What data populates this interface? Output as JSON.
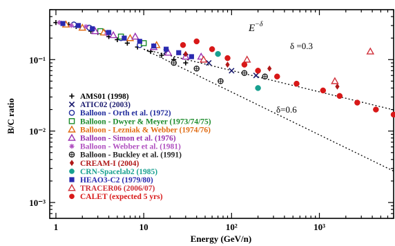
{
  "chart_data": {
    "type": "scatter",
    "xlabel": "Energy (GeV/n)",
    "ylabel": "B/C ratio",
    "xscale": "log",
    "yscale": "log",
    "xlim": [
      0.85,
      7000
    ],
    "ylim": [
      0.0006,
      0.5
    ],
    "x_ticks": [
      {
        "value": 1,
        "label": "1"
      },
      {
        "value": 10,
        "label": "10"
      },
      {
        "value": 100,
        "label": "10²"
      },
      {
        "value": 1000,
        "label": "10³"
      }
    ],
    "y_ticks": [
      {
        "value": 0.1,
        "label": "10⁻¹"
      },
      {
        "value": 0.01,
        "label": "10⁻²"
      },
      {
        "value": 0.001,
        "label": "10⁻³"
      }
    ],
    "annotations": {
      "power_law": "E",
      "power_law_exp": "−δ",
      "delta_03": "δ =0.3",
      "delta_06": "δ=0.6"
    },
    "legend_position": "bottom-left",
    "model_lines": [
      {
        "delta": 0.3,
        "points": [
          [
            10,
            0.14
          ],
          [
            7000,
            0.0198
          ]
        ]
      },
      {
        "delta": 0.6,
        "points": [
          [
            10,
            0.14
          ],
          [
            7000,
            0.00275
          ]
        ]
      }
    ],
    "series": [
      {
        "name": "AMS01 (1998)",
        "marker": "plus",
        "color": "#000000",
        "label_color": "#000000",
        "points": [
          [
            1.0,
            0.33
          ],
          [
            1.2,
            0.32
          ],
          [
            1.4,
            0.31
          ],
          [
            1.7,
            0.29
          ],
          [
            2.0,
            0.28
          ],
          [
            2.5,
            0.25
          ],
          [
            3.0,
            0.24
          ],
          [
            4.0,
            0.21
          ],
          [
            5.0,
            0.19
          ],
          [
            6.5,
            0.17
          ],
          [
            8.5,
            0.15
          ],
          [
            12,
            0.13
          ],
          [
            16,
            0.115
          ],
          [
            22,
            0.1
          ],
          [
            30,
            0.09
          ]
        ]
      },
      {
        "name": "ATIC02 (2003)",
        "marker": "x",
        "color": "#1a1a6e",
        "label_color": "#1a1a6e",
        "points": [
          [
            18,
            0.13
          ],
          [
            30,
            0.11
          ],
          [
            55,
            0.09
          ],
          [
            100,
            0.07
          ],
          [
            190,
            0.06
          ]
        ]
      },
      {
        "name": "Balloon - Orth et al. (1972)",
        "marker": "circle-open",
        "color": "#1f2a9c",
        "label_color": "#1f2a9c",
        "points": [
          [
            1.6,
            0.31
          ],
          [
            2.4,
            0.28
          ],
          [
            3.5,
            0.24
          ],
          [
            5.5,
            0.2
          ],
          [
            9,
            0.16
          ]
        ]
      },
      {
        "name": "Balloon - Dwyer & Meyer (1973/74/75)",
        "marker": "square-open",
        "color": "#1a8a2a",
        "label_color": "#1a8a2a",
        "points": [
          [
            3.2,
            0.25
          ],
          [
            5.5,
            0.21
          ],
          [
            10,
            0.17
          ]
        ]
      },
      {
        "name": "Balloon - Lezniak & Webber (1974/76)",
        "marker": "triangle-open",
        "color": "#e06a10",
        "label_color": "#e06a10",
        "points": [
          [
            1.3,
            0.31
          ],
          [
            2.0,
            0.28
          ],
          [
            3.5,
            0.24
          ],
          [
            7,
            0.2
          ],
          [
            14,
            0.16
          ]
        ]
      },
      {
        "name": "Balloon - Simon et al. (1976)",
        "marker": "triangle-open",
        "color": "#9a30b0",
        "label_color": "#9a30b0",
        "points": [
          [
            2.8,
            0.25
          ],
          [
            4.5,
            0.22
          ],
          [
            8,
            0.21
          ],
          [
            13,
            0.15
          ],
          [
            19,
            0.125
          ],
          [
            30,
            0.11
          ],
          [
            45,
            0.11
          ]
        ]
      },
      {
        "name": "Balloon - Webber et al. (1981)",
        "marker": "star",
        "color": "#b050c0",
        "label_color": "#b050c0",
        "points": [
          [
            1.1,
            0.33
          ],
          [
            1.5,
            0.3
          ],
          [
            2.2,
            0.29
          ],
          [
            3.8,
            0.23
          ],
          [
            6,
            0.2
          ],
          [
            9,
            0.18
          ]
        ]
      },
      {
        "name": "Balloon - Buckley et al. (1991)",
        "marker": "circle-plus",
        "color": "#222222",
        "label_color": "#222222",
        "points": [
          [
            22,
            0.09
          ],
          [
            40,
            0.075
          ],
          [
            75,
            0.05
          ],
          [
            140,
            0.065
          ],
          [
            240,
            0.058
          ]
        ]
      },
      {
        "name": "CREAM-I (2004)",
        "marker": "diamond",
        "color": "#b01818",
        "label_color": "#b01818",
        "points": [
          [
            30,
            0.12
          ],
          [
            90,
            0.085
          ],
          [
            270,
            0.075
          ],
          [
            1600,
            0.042
          ]
        ]
      },
      {
        "name": "CRN-Spacelab2 (1985)",
        "marker": "circle",
        "color": "#18a090",
        "label_color": "#18a090",
        "points": [
          [
            70,
            0.12
          ],
          [
            200,
            0.04
          ]
        ]
      },
      {
        "name": "HEAO3-C2 (1979/80)",
        "marker": "square",
        "color": "#2a2ab0",
        "label_color": "#2a2ab0",
        "points": [
          [
            1.2,
            0.32
          ],
          [
            1.8,
            0.3
          ],
          [
            2.6,
            0.27
          ],
          [
            4,
            0.24
          ],
          [
            6,
            0.2
          ],
          [
            9,
            0.18
          ],
          [
            13,
            0.155
          ],
          [
            18,
            0.14
          ],
          [
            25,
            0.125
          ],
          [
            35,
            0.11
          ]
        ]
      },
      {
        "name": "TRACER06 (2006/07)",
        "marker": "triangle-open",
        "color": "#d0303a",
        "label_color": "#d0303a",
        "points": [
          [
            48,
            0.1
          ],
          [
            150,
            0.1
          ],
          [
            1500,
            0.05
          ],
          [
            3800,
            0.13
          ]
        ]
      },
      {
        "name": "CALET (expected 5 yrs)",
        "marker": "circle",
        "color": "#d81818",
        "label_color": "#d81818",
        "points": [
          [
            28,
            0.16
          ],
          [
            40,
            0.18
          ],
          [
            60,
            0.14
          ],
          [
            90,
            0.105
          ],
          [
            140,
            0.085
          ],
          [
            200,
            0.07
          ],
          [
            330,
            0.058
          ],
          [
            550,
            0.046
          ],
          [
            1100,
            0.037
          ],
          [
            1700,
            0.031
          ],
          [
            2700,
            0.025
          ],
          [
            4400,
            0.02
          ],
          [
            7000,
            0.017
          ]
        ]
      }
    ]
  }
}
